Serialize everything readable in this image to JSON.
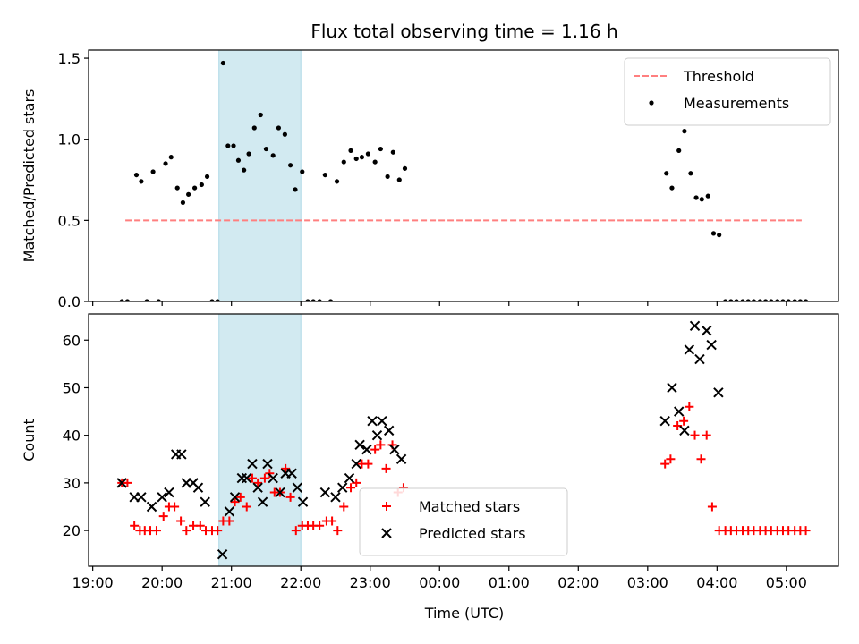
{
  "chart_data": {
    "title": "Flux total observing time = 1.16 h",
    "xlabel": "Time (UTC)",
    "x_unit": "hours UTC (values > 24 fall on the next day)",
    "x_ticks": [
      19,
      20,
      21,
      22,
      23,
      24,
      25,
      26,
      27,
      28,
      29
    ],
    "x_tick_labels": [
      "19:00",
      "20:00",
      "21:00",
      "22:00",
      "23:00",
      "00:00",
      "01:00",
      "02:00",
      "03:00",
      "04:00",
      "05:00"
    ],
    "xlim": [
      18.94,
      29.75
    ],
    "highlight_span": [
      20.82,
      22.0
    ],
    "highlight_color": "#add8e6",
    "panels": [
      {
        "type": "scatter",
        "ylabel": "Matched/Predicted stars",
        "ylim": [
          0,
          1.55
        ],
        "y_ticks": [
          0.0,
          0.5,
          1.0,
          1.5
        ],
        "y_tick_labels": [
          "0.0",
          "0.5",
          "1.0",
          "1.5"
        ],
        "legend_position": "top-right",
        "threshold": {
          "name": "Threshold",
          "value": 0.5,
          "x_range": [
            19.47,
            29.22
          ],
          "color": "#ff7f7f",
          "style": "dashed"
        },
        "series": [
          {
            "name": "Measurements",
            "marker": "dot",
            "color": "#000000",
            "points": [
              [
                19.42,
                0
              ],
              [
                19.5,
                0
              ],
              [
                19.63,
                0.78
              ],
              [
                19.7,
                0.74
              ],
              [
                19.78,
                0
              ],
              [
                19.87,
                0.8
              ],
              [
                19.95,
                0
              ],
              [
                20.05,
                0.85
              ],
              [
                20.13,
                0.89
              ],
              [
                20.22,
                0.7
              ],
              [
                20.3,
                0.61
              ],
              [
                20.38,
                0.66
              ],
              [
                20.47,
                0.7
              ],
              [
                20.57,
                0.72
              ],
              [
                20.65,
                0.77
              ],
              [
                20.72,
                0
              ],
              [
                20.8,
                0
              ],
              [
                20.88,
                1.47
              ],
              [
                20.95,
                0.96
              ],
              [
                21.03,
                0.96
              ],
              [
                21.1,
                0.87
              ],
              [
                21.18,
                0.81
              ],
              [
                21.25,
                0.91
              ],
              [
                21.33,
                1.07
              ],
              [
                21.42,
                1.15
              ],
              [
                21.5,
                0.94
              ],
              [
                21.6,
                0.9
              ],
              [
                21.68,
                1.07
              ],
              [
                21.77,
                1.03
              ],
              [
                21.85,
                0.84
              ],
              [
                21.92,
                0.69
              ],
              [
                22.02,
                0.8
              ],
              [
                22.1,
                0
              ],
              [
                22.18,
                0
              ],
              [
                22.27,
                0
              ],
              [
                22.35,
                0.78
              ],
              [
                22.43,
                0
              ],
              [
                22.52,
                0.74
              ],
              [
                22.62,
                0.86
              ],
              [
                22.72,
                0.93
              ],
              [
                22.8,
                0.88
              ],
              [
                22.88,
                0.89
              ],
              [
                22.97,
                0.91
              ],
              [
                23.07,
                0.86
              ],
              [
                23.15,
                0.94
              ],
              [
                23.25,
                0.77
              ],
              [
                23.33,
                0.92
              ],
              [
                23.42,
                0.75
              ],
              [
                23.5,
                0.82
              ],
              [
                27.27,
                0.79
              ],
              [
                27.35,
                0.7
              ],
              [
                27.45,
                0.93
              ],
              [
                27.53,
                1.05
              ],
              [
                27.62,
                0.79
              ],
              [
                27.7,
                0.64
              ],
              [
                27.78,
                0.63
              ],
              [
                27.87,
                0.65
              ],
              [
                27.95,
                0.42
              ],
              [
                28.03,
                0.41
              ],
              [
                28.12,
                0
              ],
              [
                28.2,
                0
              ],
              [
                28.28,
                0
              ],
              [
                28.37,
                0
              ],
              [
                28.45,
                0
              ],
              [
                28.53,
                0
              ],
              [
                28.62,
                0
              ],
              [
                28.7,
                0
              ],
              [
                28.78,
                0
              ],
              [
                28.87,
                0
              ],
              [
                28.95,
                0
              ],
              [
                29.03,
                0
              ],
              [
                29.12,
                0
              ],
              [
                29.2,
                0
              ],
              [
                29.28,
                0
              ]
            ]
          }
        ]
      },
      {
        "type": "scatter",
        "ylabel": "Count",
        "ylim": [
          12.5,
          65.5
        ],
        "y_ticks": [
          20,
          30,
          40,
          50,
          60
        ],
        "y_tick_labels": [
          "20",
          "30",
          "40",
          "50",
          "60"
        ],
        "legend_position": "bottom-center",
        "series": [
          {
            "name": "Matched stars",
            "marker": "plus",
            "color": "#ff0000",
            "points": [
              [
                19.42,
                30
              ],
              [
                19.5,
                30
              ],
              [
                19.6,
                21
              ],
              [
                19.68,
                20
              ],
              [
                19.75,
                20
              ],
              [
                19.83,
                20
              ],
              [
                19.92,
                20
              ],
              [
                20.02,
                23
              ],
              [
                20.1,
                25
              ],
              [
                20.18,
                25
              ],
              [
                20.27,
                22
              ],
              [
                20.35,
                20
              ],
              [
                20.45,
                21
              ],
              [
                20.55,
                21
              ],
              [
                20.63,
                20
              ],
              [
                20.72,
                20
              ],
              [
                20.8,
                20
              ],
              [
                20.88,
                22
              ],
              [
                20.97,
                22
              ],
              [
                21.05,
                26
              ],
              [
                21.13,
                27
              ],
              [
                21.22,
                25
              ],
              [
                21.3,
                31
              ],
              [
                21.38,
                30
              ],
              [
                21.48,
                31
              ],
              [
                21.55,
                32
              ],
              [
                21.62,
                28
              ],
              [
                21.7,
                28
              ],
              [
                21.78,
                33
              ],
              [
                21.85,
                27
              ],
              [
                21.93,
                20
              ],
              [
                22.02,
                21
              ],
              [
                22.1,
                21
              ],
              [
                22.18,
                21
              ],
              [
                22.27,
                21
              ],
              [
                22.37,
                22
              ],
              [
                22.45,
                22
              ],
              [
                22.53,
                20
              ],
              [
                22.62,
                25
              ],
              [
                22.72,
                29
              ],
              [
                22.8,
                30
              ],
              [
                22.88,
                34
              ],
              [
                22.97,
                34
              ],
              [
                23.07,
                37
              ],
              [
                23.15,
                38
              ],
              [
                23.23,
                33
              ],
              [
                23.32,
                38
              ],
              [
                23.4,
                28
              ],
              [
                23.48,
                29
              ],
              [
                27.25,
                34
              ],
              [
                27.33,
                35
              ],
              [
                27.43,
                42
              ],
              [
                27.52,
                43
              ],
              [
                27.6,
                46
              ],
              [
                27.68,
                40
              ],
              [
                27.77,
                35
              ],
              [
                27.85,
                40
              ],
              [
                27.93,
                25
              ],
              [
                28.03,
                20
              ],
              [
                28.12,
                20
              ],
              [
                28.2,
                20
              ],
              [
                28.28,
                20
              ],
              [
                28.37,
                20
              ],
              [
                28.45,
                20
              ],
              [
                28.53,
                20
              ],
              [
                28.62,
                20
              ],
              [
                28.7,
                20
              ],
              [
                28.78,
                20
              ],
              [
                28.87,
                20
              ],
              [
                28.95,
                20
              ],
              [
                29.03,
                20
              ],
              [
                29.12,
                20
              ],
              [
                29.2,
                20
              ],
              [
                29.28,
                20
              ]
            ]
          },
          {
            "name": "Predicted stars",
            "marker": "x",
            "color": "#000000",
            "points": [
              [
                19.42,
                30
              ],
              [
                19.6,
                27
              ],
              [
                19.7,
                27
              ],
              [
                19.85,
                25
              ],
              [
                20.0,
                27
              ],
              [
                20.1,
                28
              ],
              [
                20.2,
                36
              ],
              [
                20.28,
                36
              ],
              [
                20.35,
                30
              ],
              [
                20.45,
                30
              ],
              [
                20.52,
                29
              ],
              [
                20.62,
                26
              ],
              [
                20.87,
                15
              ],
              [
                20.97,
                24
              ],
              [
                21.05,
                27
              ],
              [
                21.15,
                31
              ],
              [
                21.22,
                31
              ],
              [
                21.3,
                34
              ],
              [
                21.38,
                29
              ],
              [
                21.45,
                26
              ],
              [
                21.52,
                34
              ],
              [
                21.6,
                31
              ],
              [
                21.7,
                28
              ],
              [
                21.78,
                32
              ],
              [
                21.87,
                32
              ],
              [
                21.95,
                29
              ],
              [
                22.03,
                26
              ],
              [
                22.35,
                28
              ],
              [
                22.5,
                27
              ],
              [
                22.6,
                29
              ],
              [
                22.7,
                31
              ],
              [
                22.8,
                34
              ],
              [
                22.85,
                38
              ],
              [
                22.95,
                37
              ],
              [
                23.03,
                43
              ],
              [
                23.1,
                40
              ],
              [
                23.17,
                43
              ],
              [
                23.27,
                41
              ],
              [
                23.35,
                37
              ],
              [
                23.45,
                35
              ],
              [
                27.25,
                43
              ],
              [
                27.35,
                50
              ],
              [
                27.45,
                45
              ],
              [
                27.53,
                41
              ],
              [
                27.6,
                58
              ],
              [
                27.68,
                63
              ],
              [
                27.75,
                56
              ],
              [
                27.85,
                62
              ],
              [
                27.92,
                59
              ],
              [
                28.02,
                49
              ]
            ]
          }
        ]
      }
    ]
  }
}
